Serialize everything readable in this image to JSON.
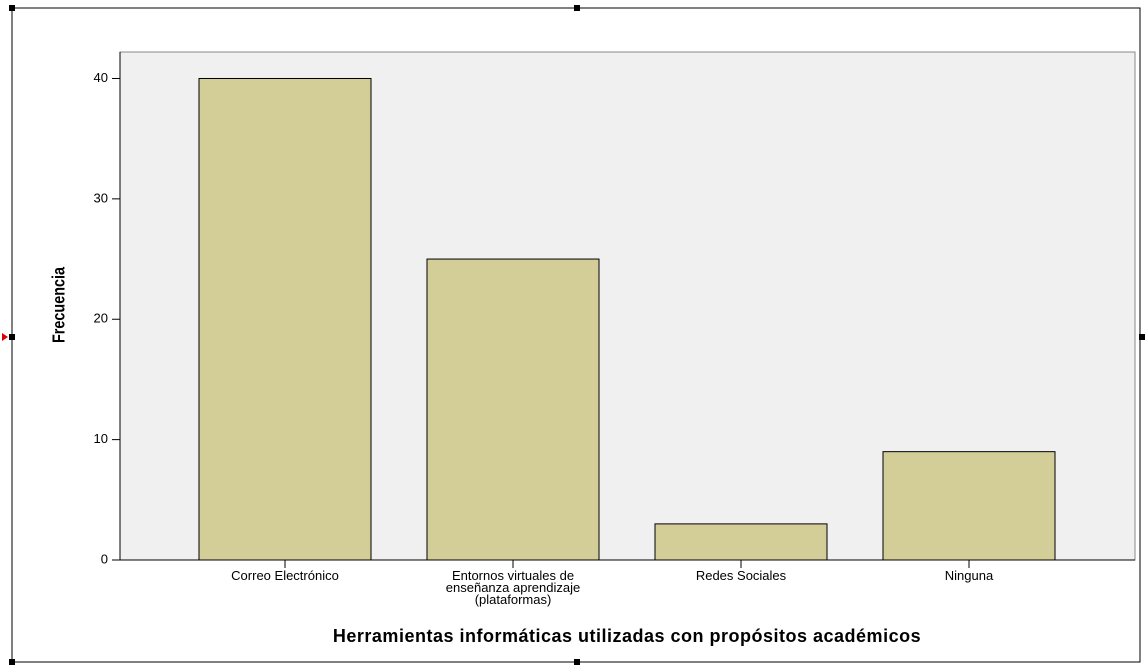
{
  "chart_data": {
    "type": "bar",
    "categories": [
      "Correo Electrónico",
      "Entornos virtuales de\nenseñanza aprendizaje\n(plataformas)",
      "Redes Sociales",
      "Ninguna"
    ],
    "values": [
      40,
      25,
      3,
      9
    ],
    "color": "#d3ce97",
    "x_label": "Herramientas informáticas utilizadas con propósitos académicos",
    "y_label": "Frecuencia",
    "ylim": [
      0,
      42.2
    ],
    "yticks": [
      0,
      10,
      20,
      30,
      40
    ],
    "grid": false
  }
}
